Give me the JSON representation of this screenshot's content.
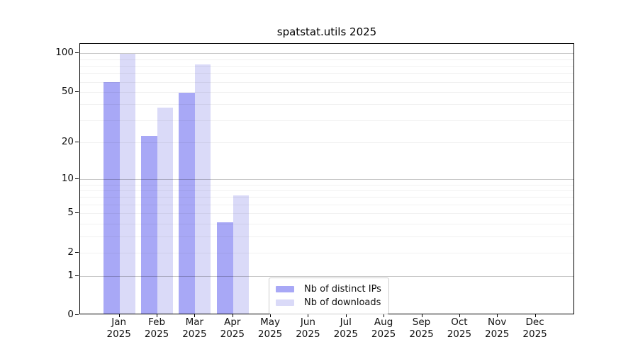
{
  "title": "spatstat.utils 2025",
  "chart_data": {
    "type": "bar",
    "title": "spatstat.utils 2025",
    "x_categories": [
      "Jan",
      "Feb",
      "Mar",
      "Apr",
      "May",
      "Jun",
      "Jul",
      "Aug",
      "Sep",
      "Oct",
      "Nov",
      "Dec"
    ],
    "x_year_label": "2025",
    "series": [
      {
        "name": "Nb of distinct IPs",
        "color": "#a8a8f6",
        "values": [
          58,
          22,
          48,
          4,
          0,
          0,
          0,
          0,
          0,
          0,
          0,
          0
        ]
      },
      {
        "name": "Nb of downloads",
        "color": "#dadaf8",
        "values": [
          96,
          37,
          80,
          7,
          0,
          0,
          0,
          0,
          0,
          0,
          0,
          0
        ]
      }
    ],
    "y_scale": "log10(1+y)",
    "y_ticks": [
      0,
      1,
      2,
      5,
      10,
      20,
      50,
      100
    ],
    "y_max": 118,
    "grid": {
      "major": [
        1,
        10,
        100
      ],
      "minor": [
        2,
        3,
        4,
        5,
        6,
        7,
        8,
        9,
        20,
        30,
        40,
        50,
        60,
        70,
        80,
        90
      ]
    },
    "legend_position": "inside lower center"
  }
}
